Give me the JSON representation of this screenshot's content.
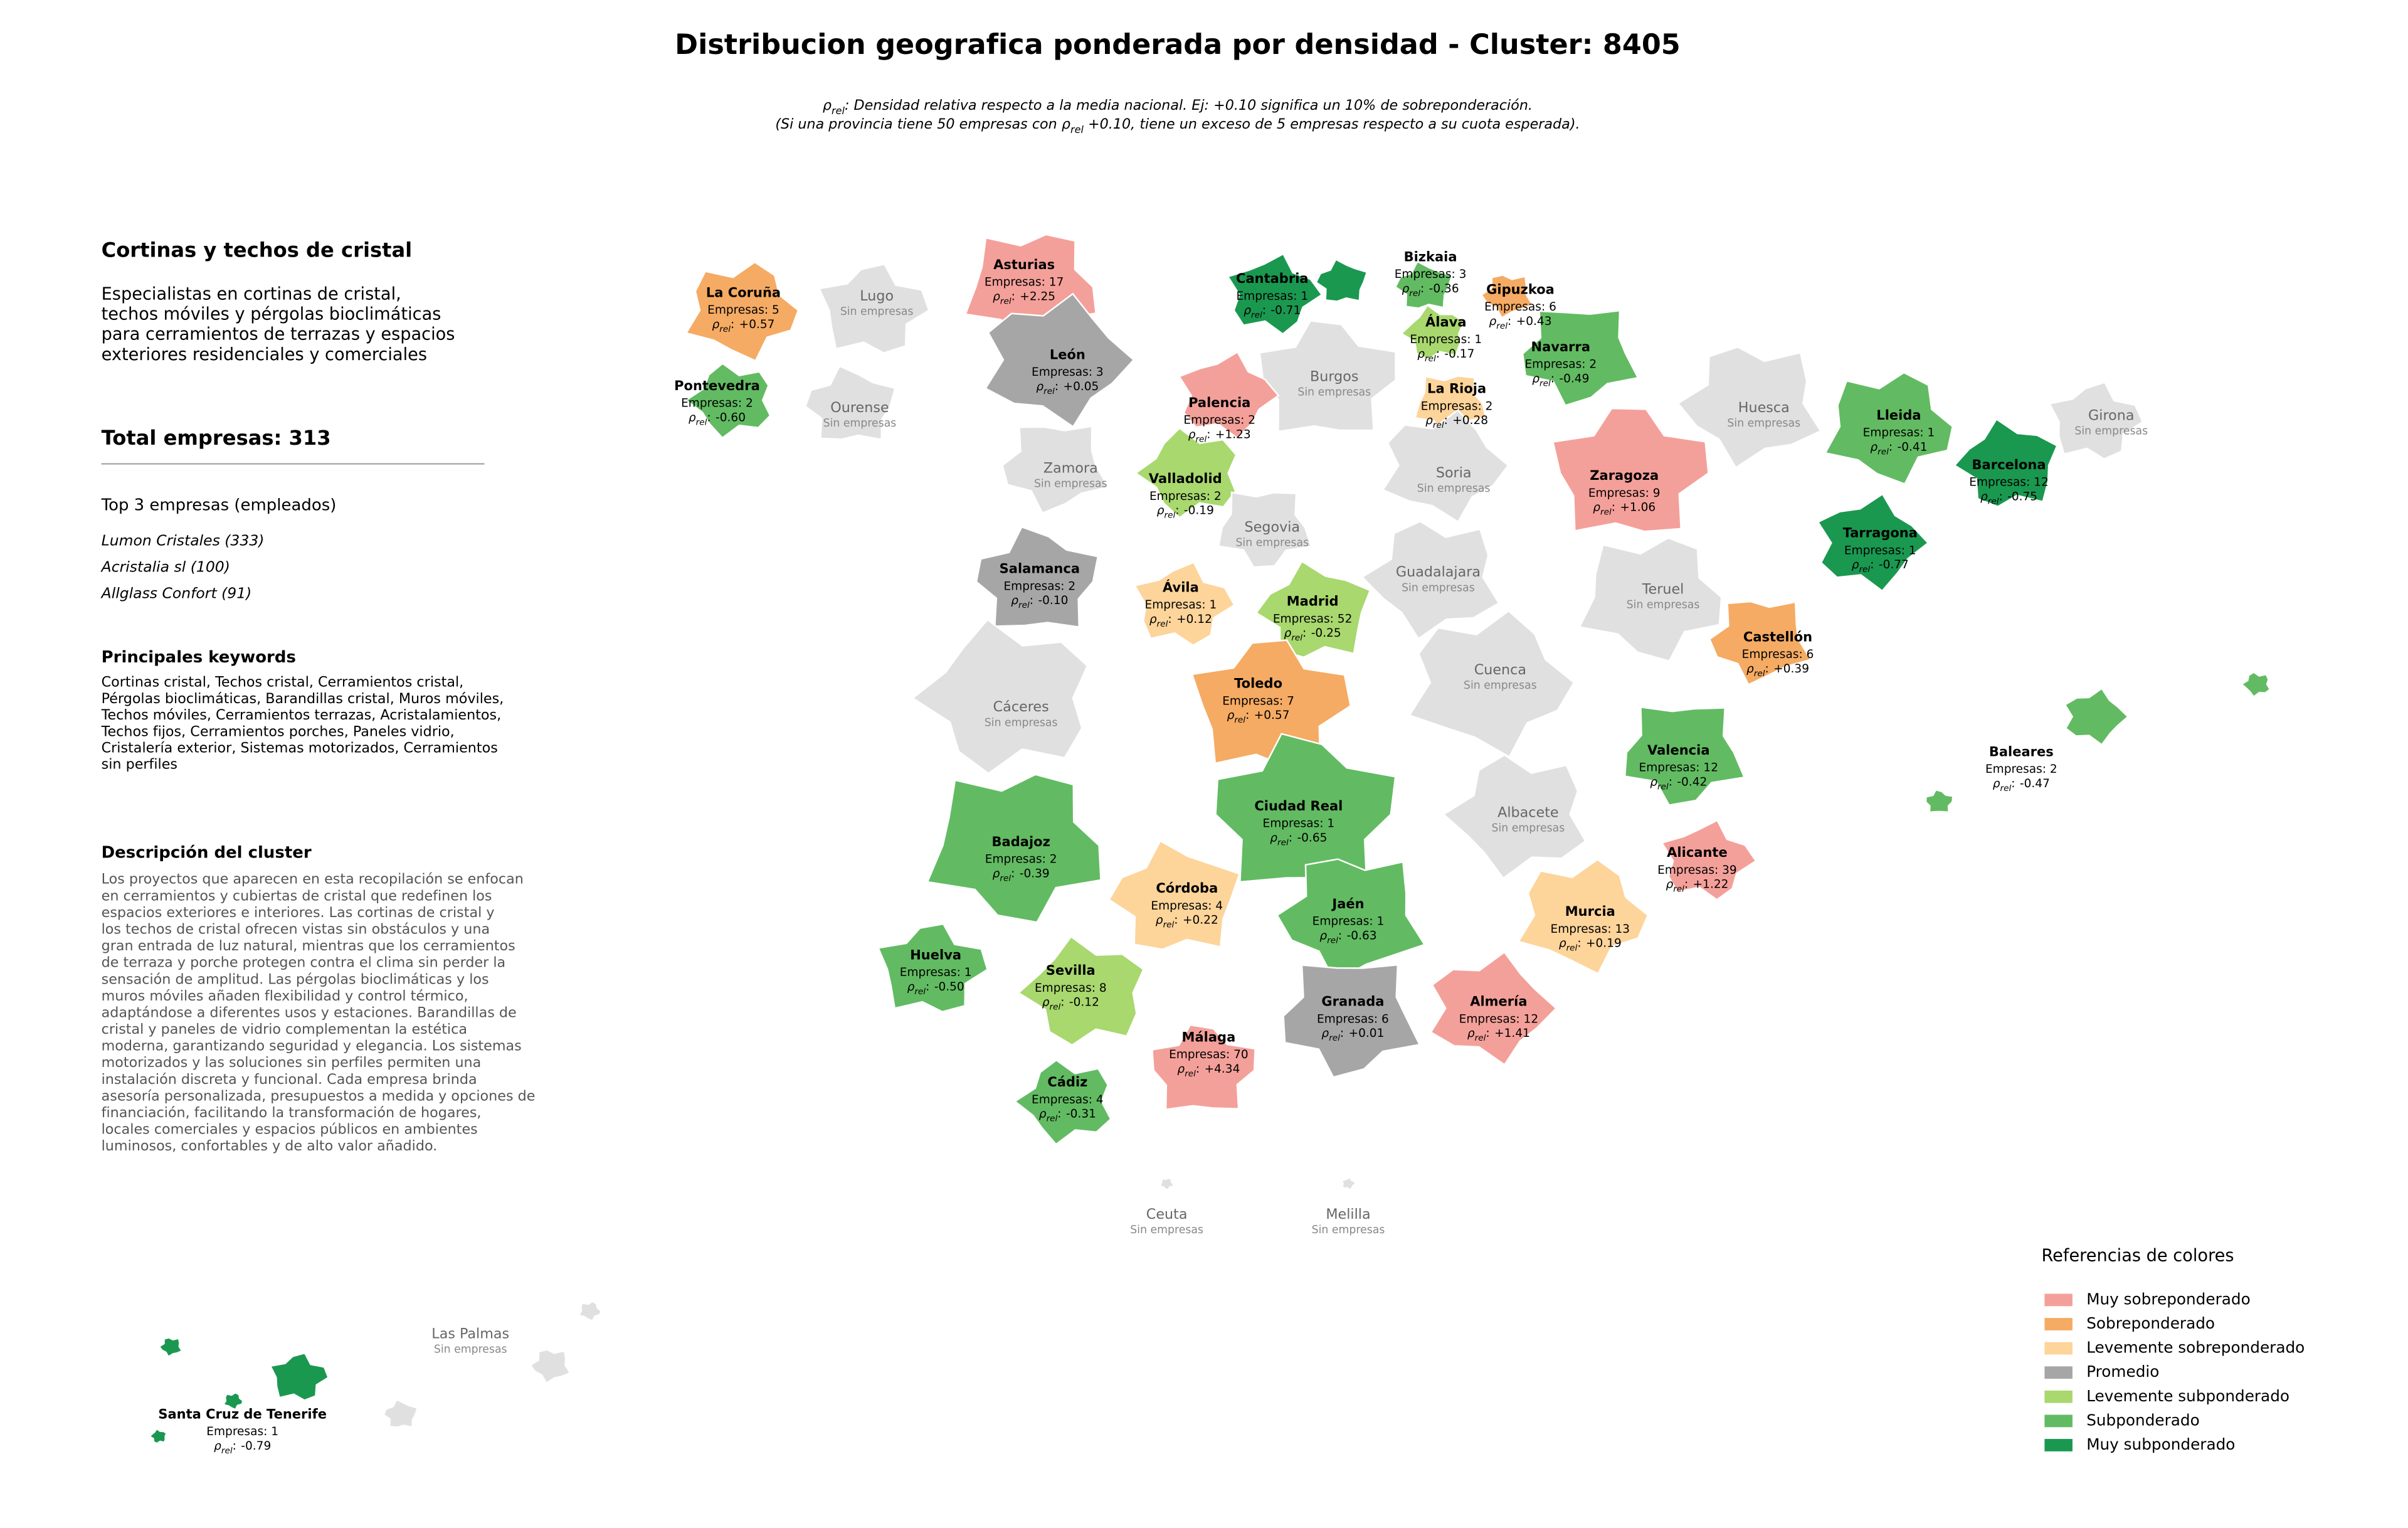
{
  "title": "Distribucion geografica ponderada por densidad - Cluster: 8405",
  "subtitle": {
    "lines": [
      [
        {
          "text": "ρ"
        },
        {
          "sub": "rel"
        },
        {
          "text": ": Densidad relativa respecto a la media nacional. Ej: +0.10 significa un 10% de sobreponderación."
        }
      ],
      [
        {
          "text": "(Si una provincia tiene 50 empresas con ρ"
        },
        {
          "sub": "rel"
        },
        {
          "text": " +0.10, tiene un exceso de 5 empresas respecto a su cuota esperada)."
        }
      ]
    ]
  },
  "panel": {
    "title": "Cortinas y techos de cristal",
    "summary": [
      "Especialistas en cortinas de cristal,",
      "techos móviles y pérgolas bioclimáticas",
      "para cerramientos de terrazas y espacios",
      "exteriores residenciales y comerciales"
    ],
    "total": "Total empresas: 313",
    "top_title": "Top 3 empresas (empleados)",
    "top": [
      "Lumon Cristales (333)",
      "Acristalia sl (100)",
      "Allglass Confort (91)"
    ],
    "keywords_title": "Principales keywords",
    "keywords": [
      "Cortinas cristal, Techos cristal, Cerramientos cristal,",
      "Pérgolas bioclimáticas, Barandillas cristal, Muros móviles,",
      "Techos móviles, Cerramientos terrazas, Acristalamientos,",
      "Techos fijos, Cerramientos porches, Paneles vidrio,",
      "Cristalería exterior, Sistemas motorizados, Cerramientos",
      "sin perfiles"
    ],
    "description_title": "Descripción del cluster",
    "description": [
      "Los proyectos que aparecen en esta recopilación se enfocan",
      "en cerramientos y cubiertas de cristal que redefinen los",
      "espacios exteriores e interiores. Las cortinas de cristal y",
      "los techos de cristal ofrecen vistas sin obstáculos y una",
      "gran entrada de luz natural, mientras que los cerramientos",
      "de terraza y porche protegen contra el clima sin perder la",
      "sensación de amplitud. Las pérgolas bioclimáticas y los",
      "muros móviles añaden flexibilidad y control térmico,",
      "adaptándose a diferentes usos y estaciones. Barandillas de",
      "cristal y paneles de vidrio complementan la estética",
      "moderna, garantizando seguridad y elegancia. Los sistemas",
      "motorizados y las soluciones sin perfiles permiten una",
      "instalación discreta y funcional. Cada empresa brinda",
      "asesoría personalizada, presupuestos a medida y opciones de",
      "financiación, facilitando la transformación de hogares,",
      "locales comerciales y espacios públicos en ambientes",
      "luminosos, confortables y de alto valor añadido."
    ]
  },
  "map": {
    "no_companies": "Sin empresas",
    "no_companies_color": "#e0e0e0",
    "density_symbol": "ρ",
    "density_subscript": "rel",
    "density_separator": ":",
    "provinces": [
      {
        "name": "Asturias",
        "companies": "Empresas: 17",
        "density": "+2.25",
        "color": "#f4a09a"
      },
      {
        "name": "Cantabria",
        "companies": "Empresas: 1",
        "density": "-0.71",
        "color": "#1a9850"
      },
      {
        "name": "Bizkaia",
        "companies": "Empresas: 3",
        "density": "-0.36",
        "color": "#62bb62"
      },
      {
        "name": "Gipuzkoa",
        "companies": "Empresas: 6",
        "density": "+0.43",
        "color": "#f5ab63"
      },
      {
        "name": "La Coruña",
        "companies": "Empresas: 5",
        "density": "+0.57",
        "color": "#f5ab63"
      },
      {
        "name": "Lugo"
      },
      {
        "name": "Álava",
        "companies": "Empresas: 1",
        "density": "-0.17",
        "color": "#a8d86e"
      },
      {
        "name": "Navarra",
        "companies": "Empresas: 2",
        "density": "-0.49",
        "color": "#62bb62"
      },
      {
        "name": "León",
        "companies": "Empresas: 3",
        "density": "+0.05",
        "color": "#a6a6a6"
      },
      {
        "name": "Burgos"
      },
      {
        "name": "Pontevedra",
        "companies": "Empresas: 2",
        "density": "-0.60",
        "color": "#62bb62"
      },
      {
        "name": "La Rioja",
        "companies": "Empresas: 2",
        "density": "+0.28",
        "color": "#fdd49a"
      },
      {
        "name": "Palencia",
        "companies": "Empresas: 2",
        "density": "+1.23",
        "color": "#f4a09a"
      },
      {
        "name": "Ourense"
      },
      {
        "name": "Huesca"
      },
      {
        "name": "Lleida",
        "companies": "Empresas: 1",
        "density": "-0.41",
        "color": "#62bb62"
      },
      {
        "name": "Girona"
      },
      {
        "name": "Barcelona",
        "companies": "Empresas: 12",
        "density": "-0.75",
        "color": "#1a9850"
      },
      {
        "name": "Zamora"
      },
      {
        "name": "Soria"
      },
      {
        "name": "Zaragoza",
        "companies": "Empresas: 9",
        "density": "+1.06",
        "color": "#f4a09a"
      },
      {
        "name": "Valladolid",
        "companies": "Empresas: 2",
        "density": "-0.19",
        "color": "#a8d86e"
      },
      {
        "name": "Segovia"
      },
      {
        "name": "Tarragona",
        "companies": "Empresas: 1",
        "density": "-0.77",
        "color": "#1a9850"
      },
      {
        "name": "Salamanca",
        "companies": "Empresas: 2",
        "density": "-0.10",
        "color": "#a6a6a6"
      },
      {
        "name": "Guadalajara"
      },
      {
        "name": "Teruel"
      },
      {
        "name": "Ávila",
        "companies": "Empresas: 1",
        "density": "+0.12",
        "color": "#fdd49a"
      },
      {
        "name": "Madrid",
        "companies": "Empresas: 52",
        "density": "-0.25",
        "color": "#a8d86e"
      },
      {
        "name": "Castellón",
        "companies": "Empresas: 6",
        "density": "+0.39",
        "color": "#f5ab63"
      },
      {
        "name": "Cuenca"
      },
      {
        "name": "Toledo",
        "companies": "Empresas: 7",
        "density": "+0.57",
        "color": "#f5ab63"
      },
      {
        "name": "Cáceres"
      },
      {
        "name": "Valencia",
        "companies": "Empresas: 12",
        "density": "-0.42",
        "color": "#62bb62"
      },
      {
        "name": "Baleares",
        "companies": "Empresas: 2",
        "density": "-0.47",
        "color": "#62bb62"
      },
      {
        "name": "Ciudad Real",
        "companies": "Empresas: 1",
        "density": "-0.65",
        "color": "#62bb62"
      },
      {
        "name": "Albacete"
      },
      {
        "name": "Badajoz",
        "companies": "Empresas: 2",
        "density": "-0.39",
        "color": "#62bb62"
      },
      {
        "name": "Alicante",
        "companies": "Empresas: 39",
        "density": "+1.22",
        "color": "#f4a09a"
      },
      {
        "name": "Córdoba",
        "companies": "Empresas: 4",
        "density": "+0.22",
        "color": "#fdd49a"
      },
      {
        "name": "Jaén",
        "companies": "Empresas: 1",
        "density": "-0.63",
        "color": "#62bb62"
      },
      {
        "name": "Murcia",
        "companies": "Empresas: 13",
        "density": "+0.19",
        "color": "#fdd49a"
      },
      {
        "name": "Huelva",
        "companies": "Empresas: 1",
        "density": "-0.50",
        "color": "#62bb62"
      },
      {
        "name": "Sevilla",
        "companies": "Empresas: 8",
        "density": "-0.12",
        "color": "#a8d86e"
      },
      {
        "name": "Granada",
        "companies": "Empresas: 6",
        "density": "+0.01",
        "color": "#a6a6a6"
      },
      {
        "name": "Almería",
        "companies": "Empresas: 12",
        "density": "+1.41",
        "color": "#f4a09a"
      },
      {
        "name": "Málaga",
        "companies": "Empresas: 70",
        "density": "+4.34",
        "color": "#f4a09a"
      },
      {
        "name": "Cádiz",
        "companies": "Empresas: 4",
        "density": "-0.31",
        "color": "#62bb62"
      },
      {
        "name": "Ceuta"
      },
      {
        "name": "Melilla"
      },
      {
        "name": "Las Palmas"
      },
      {
        "name": "Santa Cruz de Tenerife",
        "companies": "Empresas: 1",
        "density": "-0.79",
        "color": "#1a9850"
      }
    ]
  },
  "legend": {
    "title": "Referencias de colores",
    "items": [
      {
        "label": "Muy sobreponderado",
        "color": "#f4a09a"
      },
      {
        "label": "Sobreponderado",
        "color": "#f5ab63"
      },
      {
        "label": "Levemente sobreponderado",
        "color": "#fdd49a"
      },
      {
        "label": "Promedio",
        "color": "#a6a6a6"
      },
      {
        "label": "Levemente subponderado",
        "color": "#a8d86e"
      },
      {
        "label": "Subponderado",
        "color": "#62bb62"
      },
      {
        "label": "Muy subponderado",
        "color": "#1a9850"
      }
    ]
  }
}
